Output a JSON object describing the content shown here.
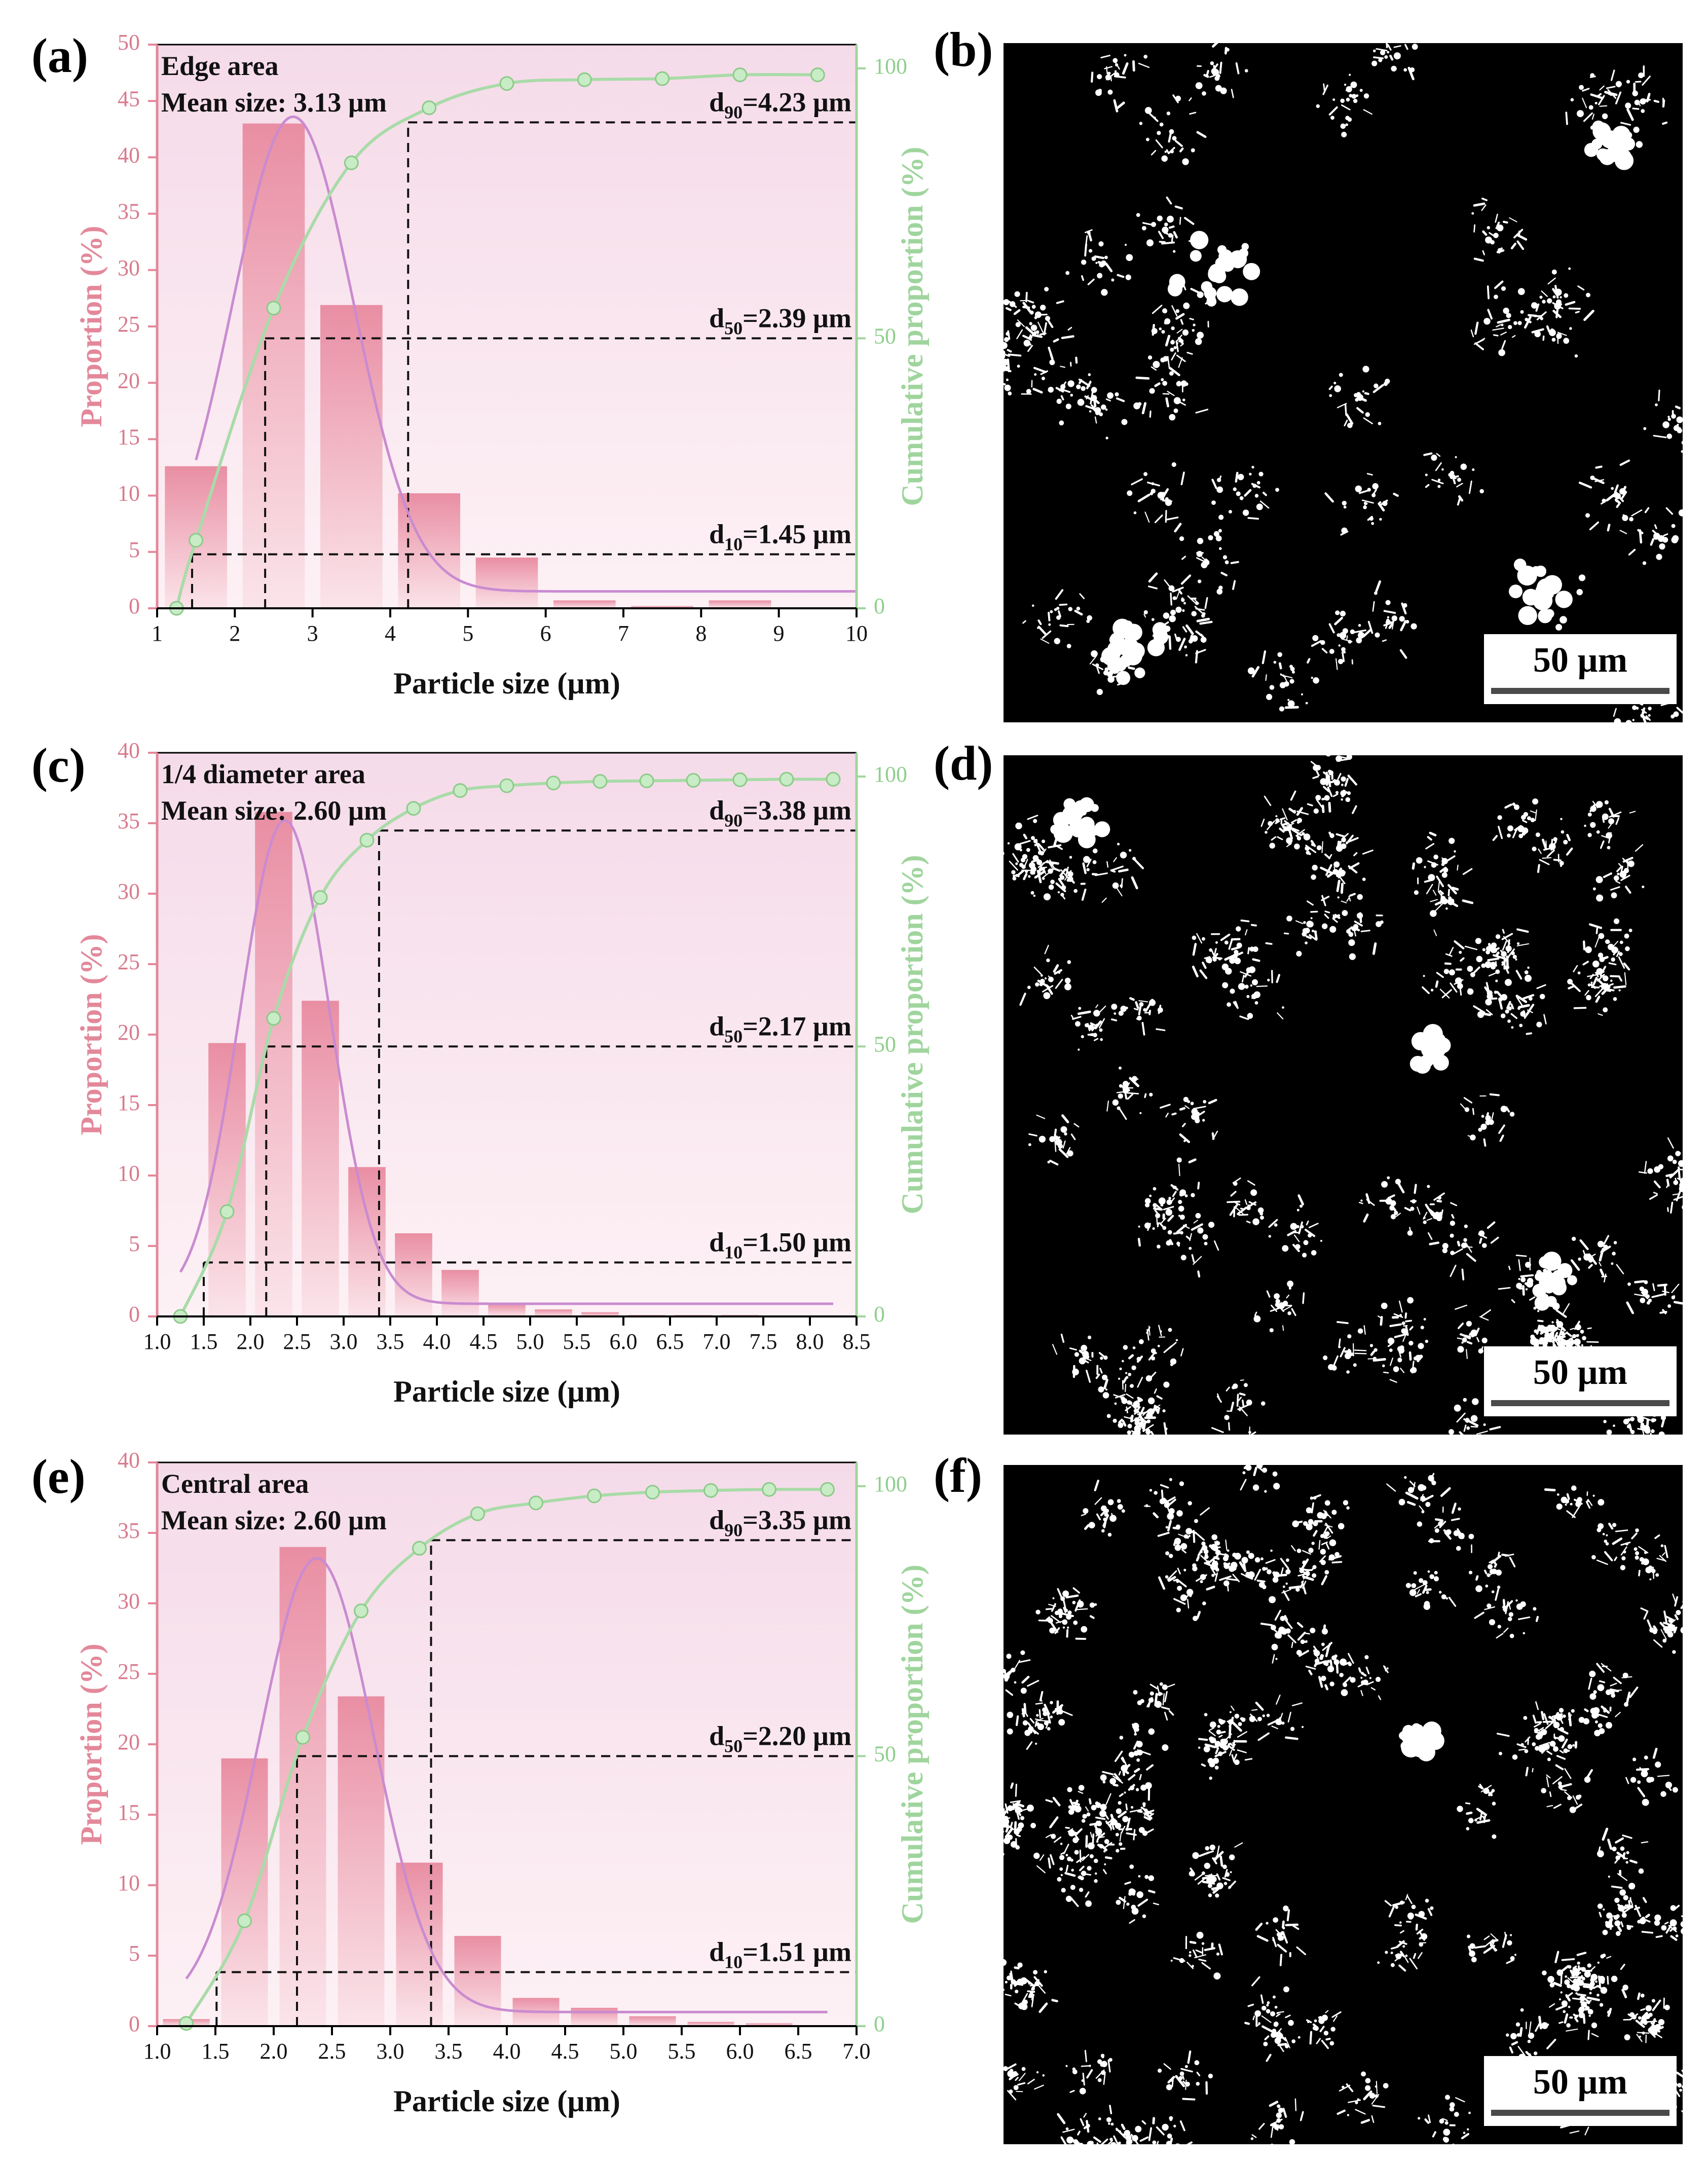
{
  "panel_labels": {
    "a": "(a)",
    "b": "(b)",
    "c": "(c)",
    "d": "(d)",
    "e": "(e)",
    "f": "(f)"
  },
  "colors": {
    "bars": "#e98ea3",
    "normal_fit": "#c98bd0",
    "cumulative": "#a9dba8",
    "left_axis": "#e3889a",
    "right_axis": "#9fd59d"
  },
  "chart_data": [
    {
      "type": "bar",
      "panel": "a",
      "region": "Edge area",
      "mean": "Mean size: 3.13 µm",
      "xlabel": "Particle size (µm)",
      "ylabel": "Proportion (%)",
      "y2label": "Cumulative proportion (%)",
      "xlim": [
        1,
        10
      ],
      "xticks": [
        1,
        2,
        3,
        4,
        5,
        6,
        7,
        8,
        9,
        10
      ],
      "ylim": [
        0,
        50
      ],
      "yticks": [
        0,
        5,
        10,
        15,
        20,
        25,
        30,
        35,
        40,
        45,
        50
      ],
      "y2lim": [
        0,
        104.4
      ],
      "y2ticks": [
        0,
        50,
        100
      ],
      "bin_width": 1,
      "bars": {
        "centers": [
          1.5,
          2.5,
          3.5,
          4.5,
          5.5,
          6.5,
          7.5,
          8.5
        ],
        "values": [
          12.6,
          43.0,
          26.9,
          10.2,
          4.5,
          0.7,
          0.2,
          0.7
        ]
      },
      "fit": {
        "center": 2.75,
        "sigma": 0.78,
        "amplitude": 42.1,
        "baseline": 1.5,
        "x_range": [
          1.5,
          10
        ]
      },
      "cumulative": {
        "x": [
          1.25,
          1.5,
          2.5,
          3.5,
          4.5,
          5.5,
          6.5,
          7.5,
          8.5,
          9.5
        ],
        "y": [
          0,
          12.6,
          55.6,
          82.5,
          92.7,
          97.2,
          97.9,
          98.1,
          98.8,
          98.8
        ]
      },
      "percentiles": [
        {
          "pre": "d",
          "sub": "90",
          "value": "=4.23 µm",
          "x": 4.23,
          "y": 90
        },
        {
          "pre": "d",
          "sub": "50",
          "value": "=2.39 µm",
          "x": 2.39,
          "y": 50
        },
        {
          "pre": "d",
          "sub": "10",
          "value": "=1.45 µm",
          "x": 1.45,
          "y": 10
        }
      ]
    },
    {
      "type": "bar",
      "panel": "c",
      "region": "1/4 diameter area",
      "mean": "Mean size: 2.60 µm",
      "xlabel": "Particle size (µm)",
      "ylabel": "Proportion (%)",
      "y2label": "Cumulative proportion (%)",
      "xlim": [
        1.0,
        8.5
      ],
      "xticks": [
        "1.0",
        "1.5",
        "2.0",
        "2.5",
        "3.0",
        "3.5",
        "4.0",
        "4.5",
        "5.0",
        "5.5",
        "6.0",
        "6.5",
        "7.0",
        "7.5",
        "8.0",
        "8.5"
      ],
      "ylim": [
        0,
        40
      ],
      "yticks": [
        0,
        5,
        10,
        15,
        20,
        25,
        30,
        35,
        40
      ],
      "y2lim": [
        0,
        104.4
      ],
      "y2ticks": [
        0,
        50,
        100
      ],
      "bin_width": 0.5,
      "bars": {
        "centers": [
          1.75,
          2.25,
          2.75,
          3.25,
          3.75,
          4.25,
          4.75,
          5.25,
          5.75,
          6.25,
          6.75,
          7.25
        ],
        "values": [
          19.4,
          35.8,
          22.4,
          10.6,
          5.9,
          3.3,
          0.9,
          0.5,
          0.3,
          0.1,
          0.1,
          0.1
        ]
      },
      "fit": {
        "center": 2.37,
        "sigma": 0.48,
        "amplitude": 34.3,
        "baseline": 0.9,
        "x_range": [
          1.25,
          8.25
        ]
      },
      "cumulative": {
        "x": [
          1.25,
          1.75,
          2.25,
          2.75,
          3.25,
          3.75,
          4.25,
          4.75,
          5.25,
          5.75,
          6.25,
          6.75,
          7.25,
          7.75,
          8.25
        ],
        "y": [
          0,
          19.4,
          55.2,
          77.6,
          88.2,
          94.1,
          97.4,
          98.3,
          98.8,
          99.1,
          99.2,
          99.3,
          99.4,
          99.5,
          99.5
        ]
      },
      "percentiles": [
        {
          "pre": "d",
          "sub": "90",
          "value": "=3.38 µm",
          "x": 3.38,
          "y": 90
        },
        {
          "pre": "d",
          "sub": "50",
          "value": "=2.17 µm",
          "x": 2.17,
          "y": 50
        },
        {
          "pre": "d",
          "sub": "10",
          "value": "=1.50 µm",
          "x": 1.5,
          "y": 10
        }
      ]
    },
    {
      "type": "bar",
      "panel": "e",
      "region": "Central area",
      "mean": "Mean size: 2.60 µm",
      "xlabel": "Particle size (µm)",
      "ylabel": "Proportion (%)",
      "y2label": "Cumulative proportion (%)",
      "xlim": [
        1.0,
        7.0
      ],
      "xticks": [
        "1.0",
        "1.5",
        "2.0",
        "2.5",
        "3.0",
        "3.5",
        "4.0",
        "4.5",
        "5.0",
        "5.5",
        "6.0",
        "6.5",
        "7.0"
      ],
      "ylim": [
        0,
        40
      ],
      "yticks": [
        0,
        5,
        10,
        15,
        20,
        25,
        30,
        35,
        40
      ],
      "y2lim": [
        0,
        104.4
      ],
      "y2ticks": [
        0,
        50,
        100
      ],
      "bin_width": 0.5,
      "bars": {
        "centers": [
          1.25,
          1.75,
          2.25,
          2.75,
          3.25,
          3.75,
          4.25,
          4.75,
          5.25,
          5.75,
          6.25
        ],
        "values": [
          0.5,
          19.0,
          34.0,
          23.4,
          11.6,
          6.4,
          2.0,
          1.3,
          0.7,
          0.3,
          0.2
        ]
      },
      "fit": {
        "center": 2.37,
        "sigma": 0.49,
        "amplitude": 32.2,
        "baseline": 1.0,
        "x_range": [
          1.25,
          6.75
        ]
      },
      "cumulative": {
        "x": [
          1.25,
          1.75,
          2.25,
          2.75,
          3.25,
          3.75,
          4.25,
          4.75,
          5.25,
          5.75,
          6.25,
          6.75
        ],
        "y": [
          0.5,
          19.5,
          53.5,
          76.9,
          88.5,
          94.9,
          96.9,
          98.2,
          98.9,
          99.2,
          99.4,
          99.4
        ]
      },
      "percentiles": [
        {
          "pre": "d",
          "sub": "90",
          "value": "=3.35 µm",
          "x": 3.35,
          "y": 90
        },
        {
          "pre": "d",
          "sub": "50",
          "value": "=2.20 µm",
          "x": 2.2,
          "y": 50
        },
        {
          "pre": "d",
          "sub": "10",
          "value": "=1.51 µm",
          "x": 1.51,
          "y": 10
        }
      ]
    }
  ],
  "micrographs": [
    {
      "panel": "b",
      "scale_label": "50 µm",
      "image": "binary-micrograph-edge"
    },
    {
      "panel": "d",
      "scale_label": "50 µm",
      "image": "binary-micrograph-quarter"
    },
    {
      "panel": "f",
      "scale_label": "50 µm",
      "image": "binary-micrograph-central"
    }
  ]
}
